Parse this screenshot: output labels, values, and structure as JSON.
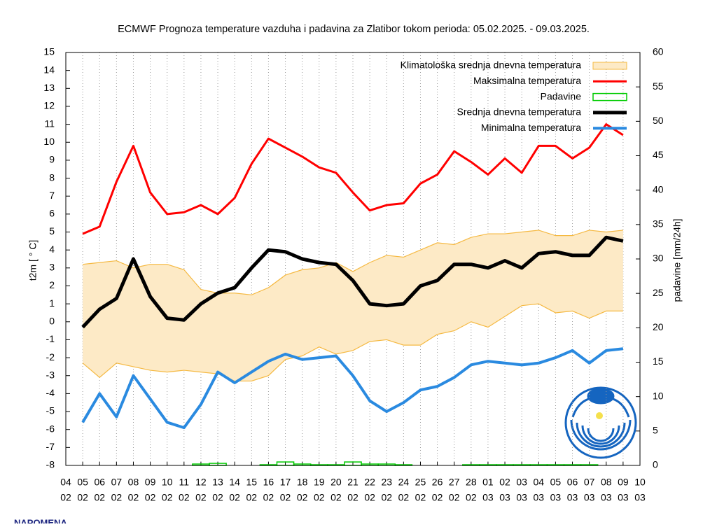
{
  "chart_data": {
    "type": "line",
    "title": "ECMWF Prognoza temperature vazduha i padavina za Zlatibor tokom perioda: 05.02.2025. - 09.03.2025.",
    "y_label": "t2m [ ° C]",
    "y2_label": "padavine [mm/24h]",
    "x_labels": [
      [
        "04",
        "02"
      ],
      [
        "05",
        "02"
      ],
      [
        "06",
        "02"
      ],
      [
        "07",
        "02"
      ],
      [
        "08",
        "02"
      ],
      [
        "09",
        "02"
      ],
      [
        "10",
        "02"
      ],
      [
        "11",
        "02"
      ],
      [
        "12",
        "02"
      ],
      [
        "13",
        "02"
      ],
      [
        "14",
        "02"
      ],
      [
        "15",
        "02"
      ],
      [
        "16",
        "02"
      ],
      [
        "17",
        "02"
      ],
      [
        "18",
        "02"
      ],
      [
        "19",
        "02"
      ],
      [
        "20",
        "02"
      ],
      [
        "21",
        "02"
      ],
      [
        "22",
        "02"
      ],
      [
        "23",
        "02"
      ],
      [
        "24",
        "02"
      ],
      [
        "25",
        "02"
      ],
      [
        "26",
        "02"
      ],
      [
        "27",
        "02"
      ],
      [
        "28",
        "02"
      ],
      [
        "01",
        "03"
      ],
      [
        "02",
        "03"
      ],
      [
        "03",
        "03"
      ],
      [
        "04",
        "03"
      ],
      [
        "05",
        "03"
      ],
      [
        "06",
        "03"
      ],
      [
        "07",
        "03"
      ],
      [
        "08",
        "03"
      ],
      [
        "09",
        "03"
      ],
      [
        "10",
        "03"
      ]
    ],
    "ylim": [
      -8,
      15
    ],
    "yticks": [
      -8,
      -7,
      -6,
      -5,
      -4,
      -3,
      -2,
      -1,
      0,
      1,
      2,
      3,
      4,
      5,
      6,
      7,
      8,
      9,
      10,
      11,
      12,
      13,
      14,
      15
    ],
    "y2lim": [
      0,
      60
    ],
    "y2ticks": [
      0,
      5,
      10,
      15,
      20,
      25,
      30,
      35,
      40,
      45,
      50,
      55,
      60
    ],
    "band": {
      "name": "Klimatološka srednja dnevna temperatura",
      "color": "#f5b942",
      "fill": "#fdeac6",
      "upper": [
        null,
        3.2,
        3.3,
        3.4,
        3.0,
        3.2,
        3.2,
        2.9,
        1.8,
        1.6,
        1.6,
        1.5,
        1.9,
        2.6,
        2.9,
        3.0,
        3.3,
        2.8,
        3.3,
        3.7,
        3.6,
        4.0,
        4.4,
        4.3,
        4.7,
        4.9,
        4.9,
        5.0,
        5.1,
        4.8,
        4.8,
        5.1,
        5.0,
        5.1,
        null
      ],
      "lower": [
        null,
        -2.3,
        -3.1,
        -2.3,
        -2.5,
        -2.7,
        -2.8,
        -2.7,
        -2.8,
        -2.9,
        -3.3,
        -3.3,
        -3.0,
        -2.1,
        -1.9,
        -1.4,
        -1.8,
        -1.6,
        -1.1,
        -1.0,
        -1.3,
        -1.3,
        -0.7,
        -0.5,
        0.0,
        -0.3,
        0.3,
        0.9,
        1.0,
        0.5,
        0.6,
        0.2,
        0.6,
        0.6,
        null
      ]
    },
    "series": [
      {
        "name": "Maksimalna temperatura",
        "color": "#ff0000",
        "width": 3,
        "values": [
          null,
          4.9,
          5.3,
          7.8,
          9.8,
          7.2,
          6.0,
          6.1,
          6.5,
          6.0,
          6.9,
          8.8,
          10.2,
          9.7,
          9.2,
          8.6,
          8.3,
          7.2,
          6.2,
          6.5,
          6.6,
          7.7,
          8.2,
          9.5,
          8.9,
          8.2,
          9.1,
          8.3,
          9.8,
          9.8,
          9.1,
          9.7,
          11.0,
          10.4,
          null
        ]
      },
      {
        "name": "Padavine",
        "color": "#00cc00",
        "axis": "y2",
        "type": "bar",
        "values": [
          null,
          0,
          0,
          0,
          0,
          0,
          0,
          0,
          0.2,
          0.3,
          0,
          0,
          0.1,
          0.5,
          0.2,
          0.1,
          0.1,
          0.5,
          0.2,
          0.2,
          0.1,
          0,
          0,
          0,
          0.1,
          0.1,
          0.1,
          0.1,
          0.1,
          0.1,
          0.1,
          0.1,
          0,
          0,
          null
        ]
      },
      {
        "name": "Srednja dnevna temperatura",
        "color": "#000000",
        "width": 5,
        "values": [
          null,
          -0.3,
          0.7,
          1.3,
          3.5,
          1.4,
          0.2,
          0.1,
          1.0,
          1.6,
          1.9,
          3.0,
          4.0,
          3.9,
          3.5,
          3.3,
          3.2,
          2.3,
          1.0,
          0.9,
          1.0,
          2.0,
          2.3,
          3.2,
          3.2,
          3.0,
          3.4,
          3.0,
          3.8,
          3.9,
          3.7,
          3.7,
          4.7,
          4.5,
          null
        ]
      },
      {
        "name": "Minimalna temperatura",
        "color": "#2a8ae0",
        "width": 4,
        "values": [
          null,
          -5.6,
          -4.0,
          -5.3,
          -3.0,
          -4.3,
          -5.6,
          -5.9,
          -4.6,
          -2.8,
          -3.4,
          -2.8,
          -2.2,
          -1.8,
          -2.1,
          -2.0,
          -1.9,
          -3.0,
          -4.4,
          -5.0,
          -4.5,
          -3.8,
          -3.6,
          -3.1,
          -2.4,
          -2.2,
          -2.3,
          -2.4,
          -2.3,
          -2.0,
          -1.6,
          -2.3,
          -1.6,
          -1.5,
          null
        ]
      }
    ],
    "note": "NAPOMENA"
  }
}
